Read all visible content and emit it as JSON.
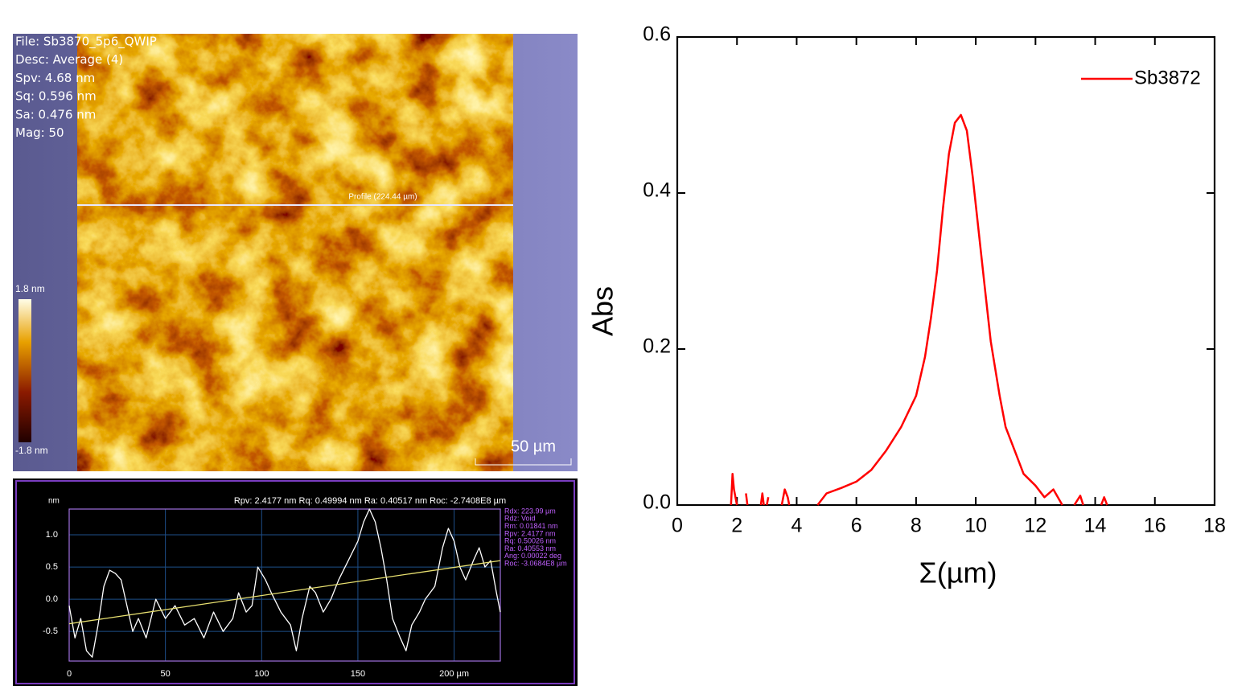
{
  "image": {
    "info": [
      "File: Sb3870_5p6_QWIP",
      "Desc: Average (4)",
      "Spv: 4.68 nm",
      "Sq: 0.596 nm",
      "Sa: 0.476 nm",
      "Mag: 50"
    ],
    "colorbar_max": "1.8 nm",
    "colorbar_min": "-1.8 nm",
    "profile_label": "Profile (224.44 µm)",
    "scale_bar": "50 µm"
  },
  "chart_data": [
    {
      "type": "line",
      "title": "Rpv: 2.4177 nm  Rq: 0.49994 nm  Ra: 0.40517 nm  Roc: -2.7408E8 µm",
      "y_label": "nm",
      "annotations": [
        "Rdx: 223.99 µm",
        "Rdz: Void",
        "Rm:  0.01841 nm",
        "Rpv: 2.4177 nm",
        "Rq:  0.50026 nm",
        "Ra:  0.40553 nm",
        "Ang: 0.00022 deg",
        "Roc: -3.0684E8 µm"
      ],
      "xlim": [
        0,
        224
      ],
      "ylim": [
        -0.96,
        1.4
      ],
      "xticks": [
        0,
        50,
        100,
        150,
        {
          "value": 200,
          "label": "200 µm"
        }
      ],
      "yticks": [
        {
          "value": 1,
          "label": "1.0"
        },
        0.5,
        {
          "value": 0,
          "label": "0.0"
        },
        -0.5
      ],
      "grid": true,
      "series": [
        {
          "color": "#ffffff",
          "x": [
            0,
            3,
            6,
            9,
            12,
            15,
            18,
            21,
            24,
            27,
            30,
            33,
            36,
            40,
            45,
            50,
            55,
            60,
            65,
            70,
            75,
            80,
            85,
            88,
            92,
            95,
            98,
            102,
            105,
            110,
            115,
            118,
            121,
            125,
            128,
            132,
            136,
            140,
            145,
            150,
            153,
            156,
            159,
            162,
            165,
            168,
            172,
            175,
            178,
            182,
            185,
            190,
            194,
            197,
            200,
            203,
            206,
            210,
            213,
            216,
            219,
            222,
            224
          ],
          "values": [
            -0.1,
            -0.6,
            -0.3,
            -0.8,
            -0.9,
            -0.4,
            0.2,
            0.45,
            0.4,
            0.3,
            -0.1,
            -0.5,
            -0.3,
            -0.6,
            0.0,
            -0.3,
            -0.1,
            -0.4,
            -0.3,
            -0.6,
            -0.2,
            -0.5,
            -0.3,
            0.1,
            -0.2,
            -0.1,
            0.5,
            0.3,
            0.1,
            -0.2,
            -0.4,
            -0.8,
            -0.3,
            0.2,
            0.1,
            -0.2,
            0.0,
            0.3,
            0.6,
            0.9,
            1.2,
            1.4,
            1.2,
            0.8,
            0.3,
            -0.3,
            -0.6,
            -0.8,
            -0.4,
            -0.2,
            0.0,
            0.2,
            0.8,
            1.1,
            0.9,
            0.5,
            0.3,
            0.6,
            0.8,
            0.5,
            0.6,
            0.1,
            -0.2
          ]
        },
        {
          "color": "#e8e070",
          "x": [
            0,
            224
          ],
          "values": [
            -0.38,
            0.6
          ]
        }
      ]
    },
    {
      "type": "line",
      "x_label": "Σ(µm)",
      "y_label": "Abs",
      "xlim": [
        0,
        18
      ],
      "ylim": [
        0,
        0.6
      ],
      "xticks": [
        0,
        2,
        4,
        6,
        8,
        10,
        12,
        14,
        16,
        18
      ],
      "yticks": [
        {
          "value": 0,
          "label": "0.0"
        },
        0.2,
        0.4,
        0.6
      ],
      "legend": "top-right",
      "series": [
        {
          "name": "Sb3872",
          "color": "#ff0000",
          "x": [
            1.8,
            1.85,
            1.9,
            2.0,
            2.15,
            2.3,
            2.35,
            2.6,
            2.8,
            2.85,
            2.9,
            2.95,
            3.0,
            3.05,
            3.3,
            3.5,
            3.6,
            3.7,
            3.75,
            4.2,
            4.7,
            5.0,
            5.5,
            6.0,
            6.5,
            7.0,
            7.5,
            8.0,
            8.3,
            8.5,
            8.7,
            8.9,
            9.1,
            9.3,
            9.5,
            9.7,
            9.9,
            10.1,
            10.3,
            10.5,
            10.8,
            11.0,
            11.3,
            11.6,
            12.0,
            12.3,
            12.6,
            12.9,
            13.1,
            13.3,
            13.5,
            13.6,
            13.9,
            14.2,
            14.3,
            14.4
          ],
          "values": [
            0.0,
            0.04,
            0.02,
            0.0,
            null,
            0.015,
            0.0,
            null,
            0.0,
            0.015,
            0.0,
            null,
            0.0,
            0.01,
            null,
            0.0,
            0.02,
            0.01,
            0.0,
            null,
            0.0,
            0.015,
            0.022,
            0.03,
            0.045,
            0.07,
            0.1,
            0.14,
            0.19,
            0.24,
            0.3,
            0.38,
            0.45,
            0.49,
            0.5,
            0.48,
            0.42,
            0.35,
            0.28,
            0.21,
            0.14,
            0.1,
            0.07,
            0.04,
            0.025,
            0.01,
            0.02,
            0.0,
            null,
            0.0,
            0.012,
            0.0,
            null,
            0.0,
            0.01,
            0.0
          ]
        }
      ]
    }
  ]
}
